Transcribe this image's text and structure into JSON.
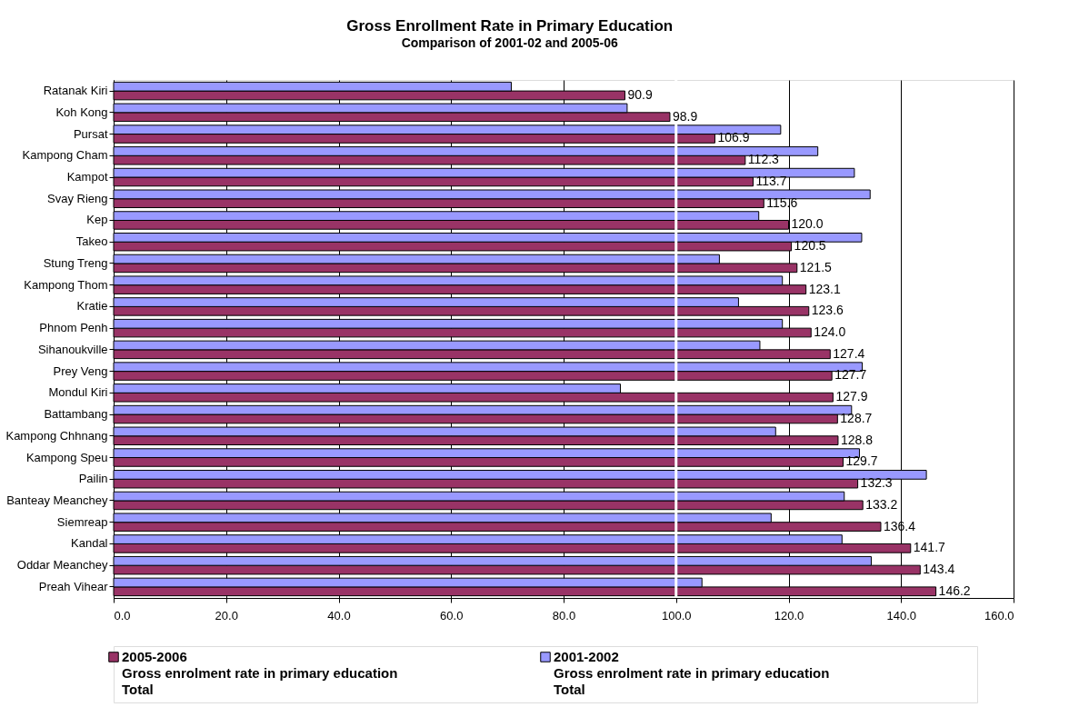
{
  "chart_data": {
    "type": "bar",
    "orientation": "horizontal",
    "title": "Gross Enrollment Rate in Primary Education",
    "subtitle": "Comparison of 2001-02 and 2005-06",
    "categories": [
      "Ratanak Kiri",
      "Koh Kong",
      "Pursat",
      "Kampong Cham",
      "Kampot",
      "Svay Rieng",
      "Kep",
      "Takeo",
      "Stung Treng",
      "Kampong Thom",
      "Kratie",
      "Phnom Penh",
      "Sihanoukville",
      "Prey Veng",
      "Mondul Kiri",
      "Battambang",
      "Kampong Chhnang",
      "Kampong Speu",
      "Pailin",
      "Banteay Meanchey",
      "Siemreap",
      "Kandal",
      "Oddar Meanchey",
      "Preah Vihear"
    ],
    "series": [
      {
        "name": "2005-2006\nGross enrolment rate in primary education\nTotal",
        "color": "#993366",
        "values": [
          90.9,
          98.9,
          106.9,
          112.3,
          113.7,
          115.6,
          120.0,
          120.5,
          121.5,
          123.1,
          123.6,
          124.0,
          127.4,
          127.7,
          127.9,
          128.7,
          128.8,
          129.7,
          132.3,
          133.2,
          136.4,
          141.7,
          143.4,
          146.2
        ],
        "value_labels": [
          "90.9",
          "98.9",
          "106.9",
          "112.3",
          "113.7",
          "115.6",
          "120.0",
          "120.5",
          "121.5",
          "123.1",
          "123.6",
          "124.0",
          "127.4",
          "127.7",
          "127.9",
          "128.7",
          "128.8",
          "129.7",
          "132.3",
          "133.2",
          "136.4",
          "141.7",
          "143.4",
          "146.2"
        ]
      },
      {
        "name": "2001-2002\nGross enrolment rate in primary education\nTotal",
        "color": "#9999ff",
        "values": [
          70.7,
          91.3,
          118.6,
          125.2,
          131.7,
          134.5,
          114.7,
          133.0,
          107.7,
          118.9,
          111.1,
          118.9,
          114.9,
          133.1,
          90.1,
          131.2,
          117.7,
          132.6,
          144.5,
          129.9,
          116.9,
          129.5,
          134.7,
          104.6
        ]
      }
    ],
    "xlim": [
      0,
      160
    ],
    "xticks": [
      {
        "value": 0,
        "label": "0.0"
      },
      {
        "value": 20,
        "label": "20.0"
      },
      {
        "value": 40,
        "label": "40.0"
      },
      {
        "value": 60,
        "label": "60.0"
      },
      {
        "value": 80,
        "label": "80.0"
      },
      {
        "value": 100,
        "label": "100.0"
      },
      {
        "value": 120,
        "label": "120.0"
      },
      {
        "value": 140,
        "label": "140.0"
      },
      {
        "value": 160,
        "label": "160.0"
      }
    ],
    "ref_lines": [
      {
        "axis": "x",
        "value": 100,
        "color": "#ffffff"
      }
    ],
    "grid": "x",
    "legend": "bottom"
  }
}
